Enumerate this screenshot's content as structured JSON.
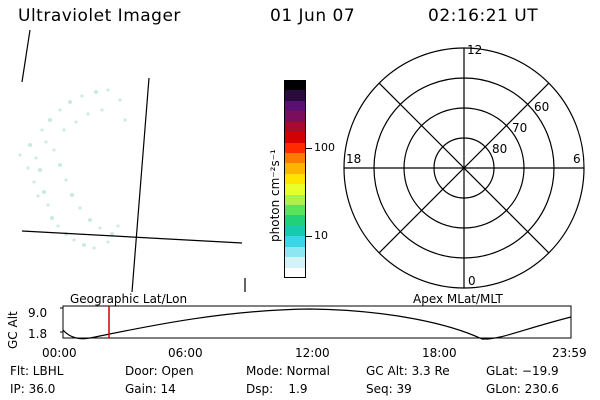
{
  "header": {
    "instrument": "Ultraviolet Imager",
    "date": "01 Jun 07",
    "time": "02:16:21 UT"
  },
  "colorbar": {
    "unit_label": "photon cm⁻²s⁻¹",
    "ticks": [
      "100",
      "10"
    ],
    "colors": [
      "#000000",
      "#2b0a3d",
      "#5a1070",
      "#7a0d5c",
      "#a80a2a",
      "#d40000",
      "#ff2a00",
      "#ff7a00",
      "#ffb400",
      "#ffe400",
      "#e9ff2b",
      "#a9f24a",
      "#5ae35a",
      "#22d07a",
      "#16c9b2",
      "#38d6e6",
      "#8ee6f2",
      "#d4f3f8",
      "#ffffff"
    ]
  },
  "polar_plot": {
    "mlt_labels": {
      "top": "12",
      "left": "18",
      "right": "6",
      "bottom": "0"
    },
    "lat_labels": [
      "60",
      "70",
      "80"
    ]
  },
  "timeline": {
    "left_title": "Geographic Lat/Lon",
    "right_title": "Apex MLat/MLT",
    "axis_label": "GC Alt",
    "y_ticks": [
      "9.0",
      "1.8"
    ],
    "x_ticks": [
      "00:00",
      "06:00",
      "12:00",
      "18:00",
      "23:59"
    ],
    "marker_color": "#d00000"
  },
  "info": {
    "row1": [
      "Flt: LBHL",
      "Door: Open",
      "Mode: Normal",
      "GC Alt: 3.3 Re",
      "GLat: −19.9"
    ],
    "row2": [
      "IP: 36.0",
      "Gain: 14",
      "Dsp:    1.9",
      "Seq: 39",
      "GLon: 230.6"
    ]
  }
}
